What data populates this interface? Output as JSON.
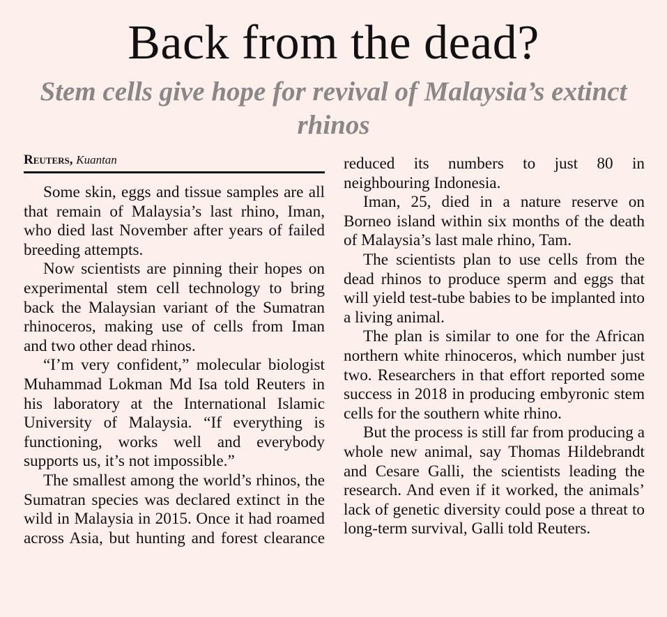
{
  "headline": "Back from the dead?",
  "subheadline": "Stem cells give hope for revival of Malaysia’s extinct rhinos",
  "byline": {
    "agency": "Reuters,",
    "place": "Kuantan"
  },
  "left_column": [
    "Some skin, eggs and tissue samples are all that remain of Malaysia’s last rhino, Iman, who died last November after years of failed breeding attempts.",
    "Now scientists are pinning their hopes on experimental stem cell technology to bring back the Malaysian variant of the Sumatran rhinoceros, making use of cells from Iman and two other dead rhinos.",
    "“I’m very confident,” molecular biologist Muhammad Lokman Md Isa told Reuters in his laboratory at the International Islamic University of Malaysia. “If everything is functioning, works well and everybody supports us, it’s not impossible.”",
    "The smallest among the world’s rhinos, the Sumatran species was declared extinct in the wild in Malaysia in 2015. Once it had roamed across Asia, but hunting and forest clearance"
  ],
  "right_column": [
    "reduced its numbers to just 80 in neighbouring Indonesia.",
    "Iman, 25, died in a nature reserve on Borneo island within six months of the death of Malaysia’s last male rhino, Tam.",
    "The scientists plan to use cells from the dead rhinos to produce sperm and eggs that will yield test-tube babies to be implanted into a living animal.",
    "The plan is similar to one for the African northern white rhinoceros, which number just two. Researchers in that effort reported some success in 2018 in producing embyronic stem cells for the southern white rhino.",
    "But the process is still far from producing a whole new animal, say Thomas Hildebrandt and Cesare Galli, the scientists leading the research. And even if it worked, the animals’ lack of genetic diversity could pose a threat to long-term survival, Galli told Reuters."
  ]
}
